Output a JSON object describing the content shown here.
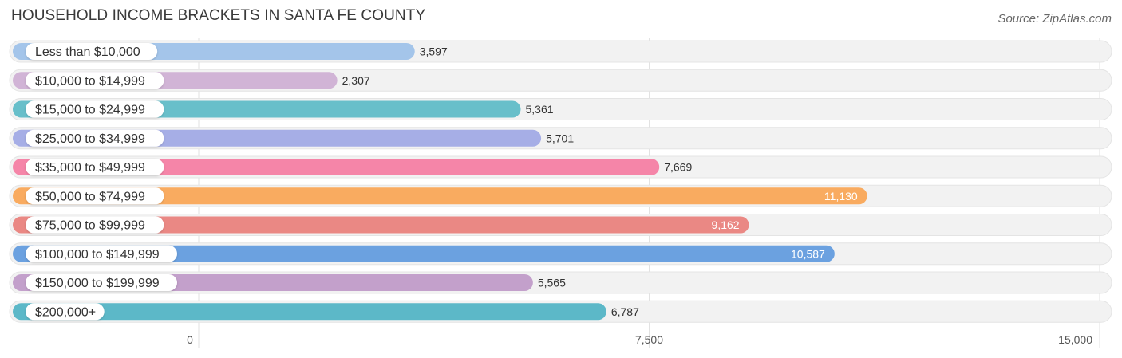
{
  "chart_data": {
    "type": "bar",
    "orientation": "horizontal",
    "title": "HOUSEHOLD INCOME BRACKETS IN SANTA FE COUNTY",
    "source": "Source: ZipAtlas.com",
    "categories": [
      "Less than $10,000",
      "$10,000 to $14,999",
      "$15,000 to $24,999",
      "$25,000 to $34,999",
      "$35,000 to $49,999",
      "$50,000 to $74,999",
      "$75,000 to $99,999",
      "$100,000 to $149,999",
      "$150,000 to $199,999",
      "$200,000+"
    ],
    "values": [
      3597,
      2307,
      5361,
      5701,
      7669,
      11130,
      9162,
      10587,
      5565,
      6787
    ],
    "value_labels": [
      "3,597",
      "2,307",
      "5,361",
      "5,701",
      "7,669",
      "11,130",
      "9,162",
      "10,587",
      "5,565",
      "6,787"
    ],
    "colors": [
      "#a4c5ea",
      "#d1b4d6",
      "#68bfca",
      "#a6aee6",
      "#f585a8",
      "#f9ab60",
      "#ea8884",
      "#6ba1e0",
      "#c3a0cb",
      "#5cb8c8"
    ],
    "xlim": [
      0,
      15000
    ],
    "ticks": [
      0,
      7500,
      15000
    ],
    "tick_labels": [
      "0",
      "7,500",
      "15,000"
    ],
    "grid": true,
    "xlabel": "",
    "ylabel": ""
  }
}
